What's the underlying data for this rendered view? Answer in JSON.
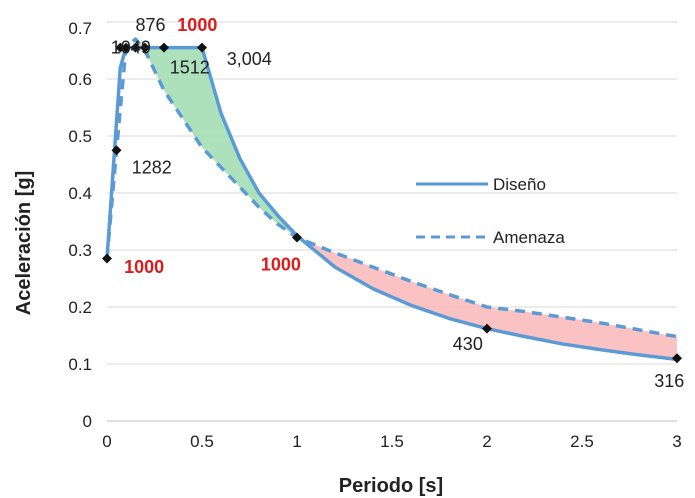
{
  "chart_data": {
    "type": "line",
    "xlabel": "Periodo [s]",
    "ylabel": "Aceleración [g]",
    "xlim": [
      0,
      3
    ],
    "ylim": [
      0,
      0.7
    ],
    "xticks": [
      "0",
      "0.5",
      "1",
      "1.5",
      "2",
      "2.5",
      "3"
    ],
    "yticks": [
      "0",
      "0.1",
      "0.2",
      "0.3",
      "0.4",
      "0.5",
      "0.6",
      "0.7"
    ],
    "grid": "horizontal",
    "legend_position": "right-middle",
    "series": [
      {
        "name": "Diseño",
        "style": "solid",
        "color": "#5b9bd5",
        "x": [
          0,
          0.07,
          0.1,
          0.14,
          0.5,
          0.6,
          0.7,
          0.8,
          0.9,
          1.0,
          1.2,
          1.4,
          1.6,
          1.8,
          2.0,
          2.2,
          2.4,
          2.6,
          2.8,
          3.0
        ],
        "y": [
          0.285,
          0.62,
          0.655,
          0.655,
          0.655,
          0.54,
          0.46,
          0.4,
          0.36,
          0.325,
          0.27,
          0.232,
          0.203,
          0.18,
          0.162,
          0.148,
          0.135,
          0.125,
          0.116,
          0.108
        ]
      },
      {
        "name": "Amenaza",
        "style": "dashed",
        "color": "#5b9bd5",
        "x": [
          0,
          0.05,
          0.1,
          0.15,
          0.2,
          0.3,
          0.4,
          0.5,
          0.6,
          0.7,
          0.8,
          0.9,
          1.0,
          1.2,
          1.4,
          1.6,
          1.8,
          2.0,
          2.2,
          2.4,
          2.6,
          2.8,
          3.0
        ],
        "y": [
          0.285,
          0.475,
          0.655,
          0.67,
          0.65,
          0.58,
          0.53,
          0.48,
          0.445,
          0.41,
          0.375,
          0.345,
          0.322,
          0.295,
          0.27,
          0.245,
          0.222,
          0.2,
          0.192,
          0.182,
          0.172,
          0.16,
          0.148
        ]
      }
    ],
    "markers": [
      {
        "x": 0,
        "y": 0.285
      },
      {
        "x": 0.05,
        "y": 0.475
      },
      {
        "x": 0.07,
        "y": 0.655
      },
      {
        "x": 0.1,
        "y": 0.655
      },
      {
        "x": 0.15,
        "y": 0.655
      },
      {
        "x": 0.2,
        "y": 0.655
      },
      {
        "x": 0.3,
        "y": 0.655
      },
      {
        "x": 0.5,
        "y": 0.655
      },
      {
        "x": 1.0,
        "y": 0.322
      },
      {
        "x": 2.0,
        "y": 0.162
      },
      {
        "x": 3.0,
        "y": 0.11
      }
    ],
    "shaded_regions": [
      {
        "color": "#9fdcb0",
        "x_range": [
          0.15,
          1.0
        ],
        "between": "Diseño above Amenaza"
      },
      {
        "color": "#f9b7b7",
        "x_range": [
          1.0,
          3.0
        ],
        "between": "Amenaza above Diseño"
      }
    ],
    "annotations": [
      {
        "text": "0.7",
        "x": 0,
        "y": 0.7
      },
      {
        "text": "876",
        "x": 0.15,
        "y": 0.695,
        "color": "black"
      },
      {
        "text": "1000",
        "x": 0.37,
        "y": 0.695,
        "color": "red"
      },
      {
        "text": "1049",
        "x": 0.02,
        "y": 0.655,
        "color": "black"
      },
      {
        "text": "1512",
        "x": 0.33,
        "y": 0.62,
        "color": "black"
      },
      {
        "text": "3,004",
        "x": 0.63,
        "y": 0.635,
        "color": "black"
      },
      {
        "text": "1282",
        "x": 0.13,
        "y": 0.445,
        "color": "black"
      },
      {
        "text": "1000",
        "x": 0.09,
        "y": 0.27,
        "color": "red"
      },
      {
        "text": "1000",
        "x": 0.81,
        "y": 0.275,
        "color": "red"
      },
      {
        "text": "430",
        "x": 1.82,
        "y": 0.135,
        "color": "black"
      },
      {
        "text": "316",
        "x": 2.88,
        "y": 0.07,
        "color": "black"
      }
    ]
  }
}
